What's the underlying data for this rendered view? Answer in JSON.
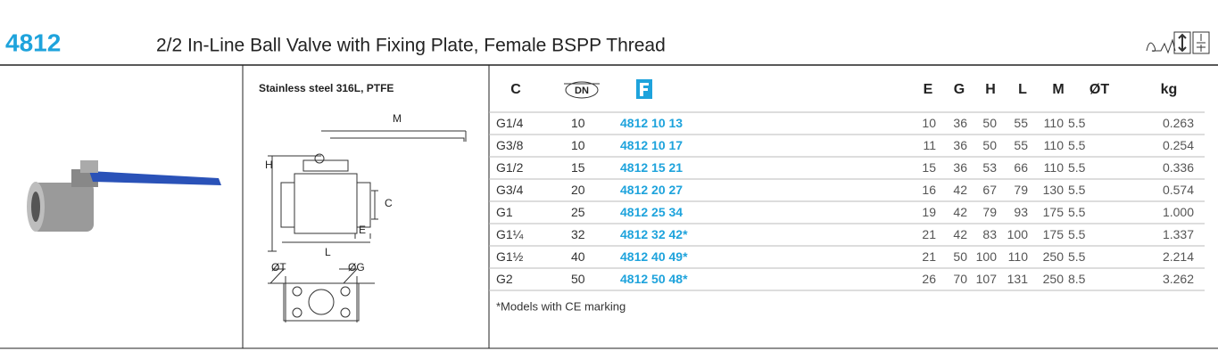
{
  "header": {
    "code": "4812",
    "title": "2/2 In-Line Ball Valve with Fixing Plate, Female BSPP Thread"
  },
  "material": "Stainless steel 316L, PTFE",
  "drawing": {
    "labels": [
      "M",
      "H",
      "C",
      "E",
      "L",
      "ØT",
      "ØG"
    ]
  },
  "table": {
    "headers": {
      "size": "C",
      "dn": "DN",
      "dims": [
        "E",
        "G",
        "H",
        "L",
        "M",
        "ØT",
        "kg"
      ]
    },
    "rows": [
      [
        "G1/4",
        "10",
        "4812 10 13",
        "10",
        "36",
        "50",
        "55",
        "110",
        "5.5",
        "0.263"
      ],
      [
        "G3/8",
        "10",
        "4812 10 17",
        "11",
        "36",
        "50",
        "55",
        "110",
        "5.5",
        "0.254"
      ],
      [
        "G1/2",
        "15",
        "4812 15 21",
        "15",
        "36",
        "53",
        "66",
        "110",
        "5.5",
        "0.336"
      ],
      [
        "G3/4",
        "20",
        "4812 20 27",
        "16",
        "42",
        "67",
        "79",
        "130",
        "5.5",
        "0.574"
      ],
      [
        "G1",
        "25",
        "4812 25 34",
        "19",
        "42",
        "79",
        "93",
        "175",
        "5.5",
        "1.000"
      ],
      [
        "G1¼",
        "32",
        "4812 32 42*",
        "21",
        "42",
        "83",
        "100",
        "175",
        "5.5",
        "1.337"
      ],
      [
        "G1½",
        "40",
        "4812 40 49*",
        "21",
        "50",
        "100",
        "110",
        "250",
        "5.5",
        "2.214"
      ],
      [
        "G2",
        "50",
        "4812 50 48*",
        "26",
        "70",
        "107",
        "131",
        "250",
        "8.5",
        "3.262"
      ]
    ],
    "note": "*Models with CE marking"
  }
}
